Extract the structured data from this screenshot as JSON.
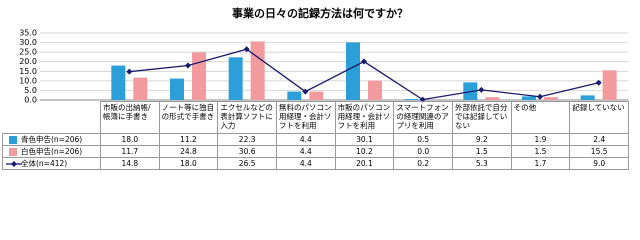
{
  "chart_data": {
    "type": "bar-line-table",
    "title": "事業の日々の記録方法は何ですか？",
    "categories": [
      "市販の出納帳/帳簿に手書き",
      "ノート等に独自の形式で手書き",
      "エクセルなどの表計算ソフトに入力",
      "無料のパソコン用経理・会計ソフトを利用",
      "市販のパソコン用経理・会計ソフトを利用",
      "スマートフォンの経理関連のアプリを利用",
      "外部依託で自分では記録していない",
      "その他",
      "記録していない"
    ],
    "series": [
      {
        "name": "青色申告(n=206)",
        "kind": "bar",
        "color": "#2c9fd9",
        "values": [
          18.0,
          11.2,
          22.3,
          4.4,
          30.1,
          0.5,
          9.2,
          1.9,
          2.4
        ],
        "value_labels": [
          "18.0",
          "11.2",
          "22.3",
          "4.4",
          "30.1",
          "0.5",
          "9.2",
          "1.9",
          "2.4"
        ]
      },
      {
        "name": "白色申告(n=206)",
        "kind": "bar",
        "color": "#f39a9e",
        "values": [
          11.7,
          24.8,
          30.6,
          4.4,
          10.2,
          0.0,
          1.5,
          1.5,
          15.5
        ],
        "value_labels": [
          "11.7",
          "24.8",
          "30.6",
          "4.4",
          "10.2",
          "0.0",
          "1.5",
          "1.5",
          "15.5"
        ]
      },
      {
        "name": "全体(n=412)",
        "kind": "line",
        "color": "#1a1a6e",
        "values": [
          14.8,
          18.0,
          26.5,
          4.4,
          20.1,
          0.2,
          5.3,
          1.7,
          9.0
        ],
        "value_labels": [
          "14.8",
          "18.0",
          "26.5",
          "4.4",
          "20.1",
          "0.2",
          "5.3",
          "1.7",
          "9.0"
        ]
      }
    ],
    "ylim": [
      0,
      35
    ],
    "yticks": [
      {
        "value": 0,
        "label": "0.0"
      },
      {
        "value": 5,
        "label": "5.0"
      },
      {
        "value": 10,
        "label": "10.0"
      },
      {
        "value": 15,
        "label": "15.0"
      },
      {
        "value": 20,
        "label": "20.0"
      },
      {
        "value": 25,
        "label": "25.0"
      },
      {
        "value": 30,
        "label": "30.0"
      },
      {
        "value": 35,
        "label": "35.0"
      }
    ],
    "grid": true
  }
}
